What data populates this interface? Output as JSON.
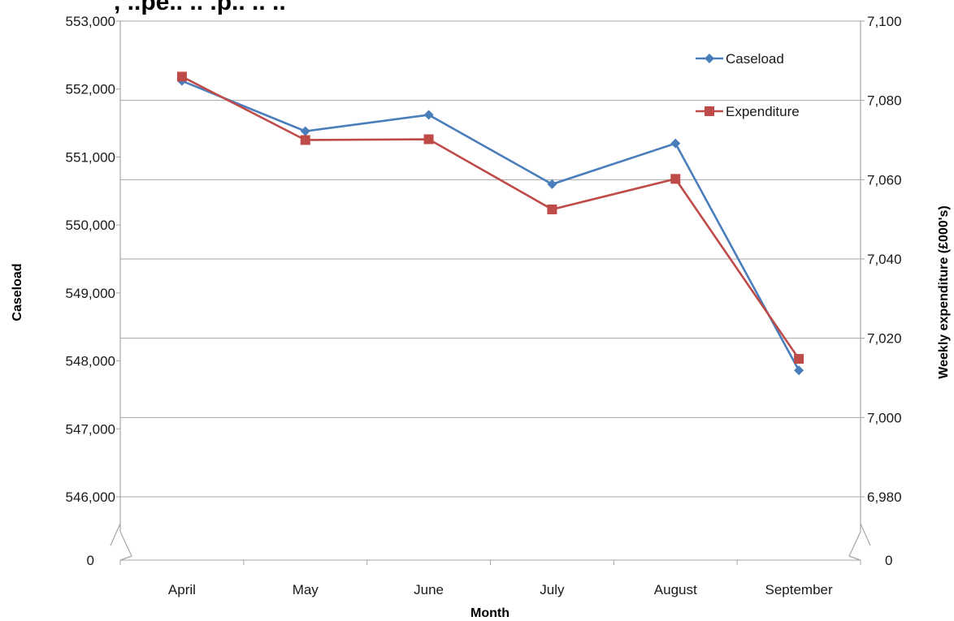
{
  "chart_data": {
    "type": "line",
    "title_fragment": ", ..pe.. .. .p.. .. ..",
    "categories": [
      "April",
      "May",
      "June",
      "July",
      "August",
      "September"
    ],
    "xlabel": "Month",
    "ylabel_left": "Caseload",
    "ylabel_right": "Weekly expenditure (£000's)",
    "y_left": {
      "ticks": [
        546000,
        547000,
        548000,
        549000,
        550000,
        551000,
        552000,
        553000
      ],
      "tick_labels": [
        "546,000",
        "547,000",
        "548,000",
        "549,000",
        "550,000",
        "551,000",
        "552,000",
        "553,000"
      ],
      "range": [
        546000,
        553000
      ],
      "broken_axis_zero_label": "0"
    },
    "y_right": {
      "ticks": [
        6980,
        7000,
        7020,
        7040,
        7060,
        7080,
        7100
      ],
      "tick_labels": [
        "6,980",
        "7,000",
        "7,020",
        "7,040",
        "7,060",
        "7,080",
        "7,100"
      ],
      "range": [
        6980,
        7100
      ],
      "broken_axis_zero_label": "0"
    },
    "series": [
      {
        "name": "Caseload",
        "axis": "left",
        "color": "#4a7ebb",
        "marker": "diamond",
        "values": [
          552120,
          551380,
          551620,
          550600,
          551200,
          547860
        ]
      },
      {
        "name": "Expenditure",
        "axis": "right",
        "color": "#be4b48",
        "marker": "square",
        "values": [
          7086,
          7070,
          7070.2,
          7052.5,
          7060.2,
          7014.8
        ]
      }
    ],
    "grid": true,
    "legend": "top-right"
  }
}
